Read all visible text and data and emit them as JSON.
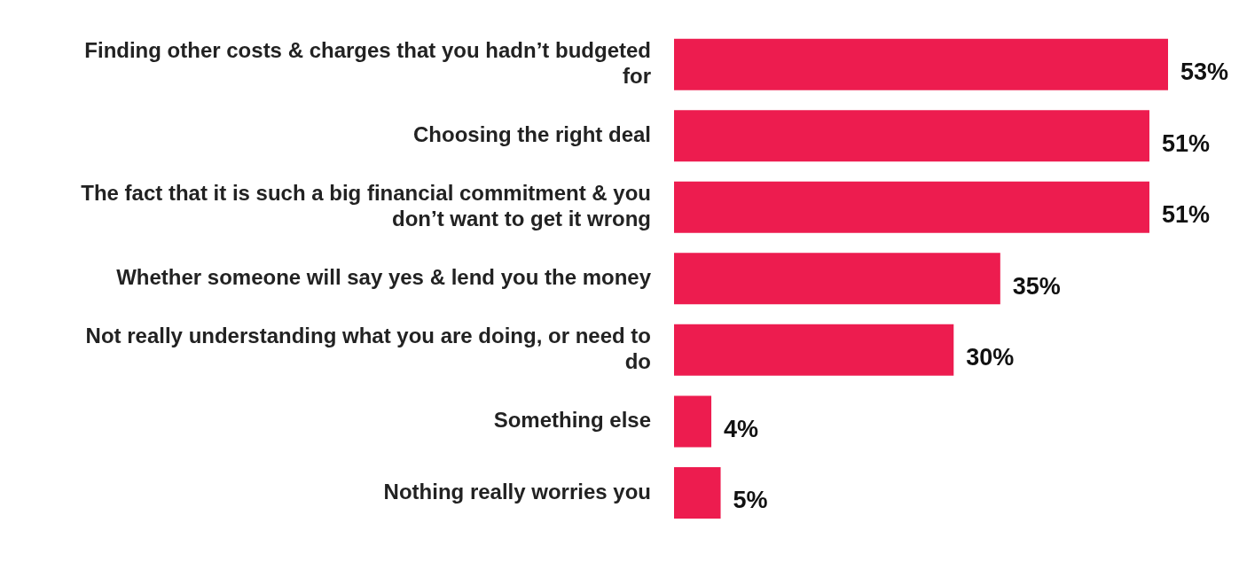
{
  "chart_data": {
    "type": "bar",
    "orientation": "horizontal",
    "categories": [
      "Finding other costs & charges that you hadn’t budgeted for",
      "Choosing the right deal",
      "The fact that it is such a big financial commitment & you don’t want to get it wrong",
      "Whether someone will say yes & lend you the money",
      "Not really understanding what you are doing, or need to do",
      "Something else",
      "Nothing really worries you"
    ],
    "values": [
      53,
      51,
      51,
      35,
      30,
      4,
      5
    ],
    "value_labels": [
      "53%",
      "51%",
      "51%",
      "35%",
      "30%",
      "4%",
      "5%"
    ],
    "color": "#ed1c4f"
  }
}
